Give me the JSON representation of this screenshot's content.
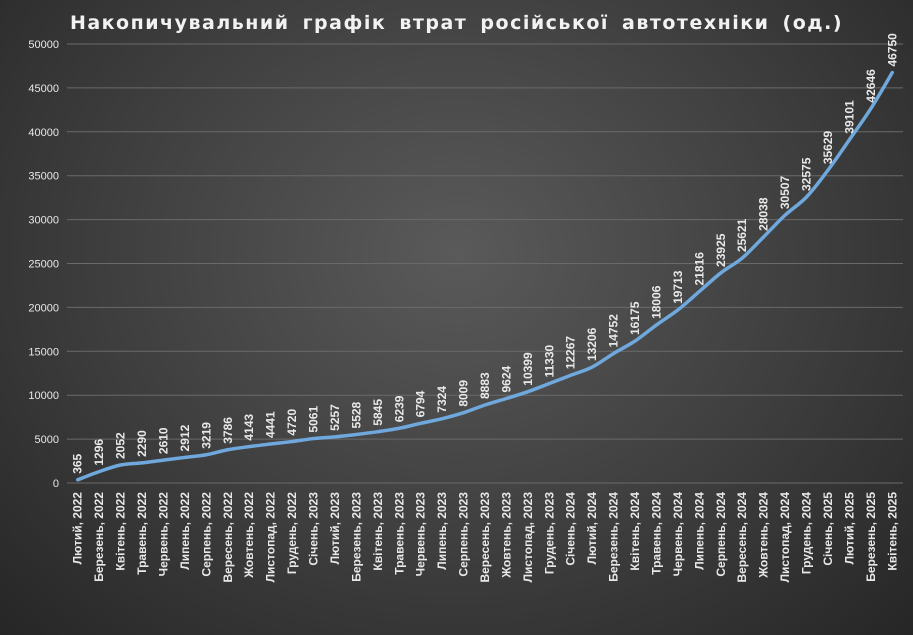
{
  "chart_data": {
    "type": "line",
    "title": "Накопичувальний графік втрат російської автотехніки (од.)",
    "xlabel": "",
    "ylabel": "",
    "ylim": [
      0,
      50000
    ],
    "yticks": [
      0,
      5000,
      10000,
      15000,
      20000,
      25000,
      30000,
      35000,
      40000,
      45000,
      50000
    ],
    "grid": true,
    "legend": "none",
    "series_color": "#6fa8dc",
    "categories": [
      "Лютий, 2022",
      "Березень, 2022",
      "Квітень, 2022",
      "Травень, 2022",
      "Червень, 2022",
      "Липень, 2022",
      "Серпень, 2022",
      "Вересень, 2022",
      "Жовтень, 2022",
      "Листопад, 2022",
      "Грудень, 2022",
      "Січень, 2023",
      "Лютий, 2023",
      "Березень, 2023",
      "Квітень, 2023",
      "Травень, 2023",
      "Червень, 2023",
      "Липень, 2023",
      "Серпень, 2023",
      "Вересень, 2023",
      "Жовтень, 2023",
      "Листопад, 2023",
      "Грудень, 2023",
      "Січень, 2024",
      "Лютий, 2024",
      "Березень, 2024",
      "Квітень, 2024",
      "Травень, 2024",
      "Червень, 2024",
      "Липень, 2024",
      "Серпень, 2024",
      "Вересень, 2024",
      "Жовтень, 2024",
      "Листопад, 2024",
      "Грудень, 2024",
      "Січень, 2025",
      "Лютий, 2025",
      "Березень, 2025",
      "Квітень, 2025"
    ],
    "values": [
      365,
      1296,
      2052,
      2290,
      2610,
      2912,
      3219,
      3786,
      4143,
      4441,
      4720,
      5061,
      5257,
      5528,
      5845,
      6239,
      6794,
      7324,
      8009,
      8883,
      9624,
      10399,
      11330,
      12267,
      13206,
      14752,
      16175,
      18006,
      19713,
      21816,
      23925,
      25621,
      28038,
      30507,
      32575,
      35629,
      39101,
      42646,
      46750
    ]
  }
}
